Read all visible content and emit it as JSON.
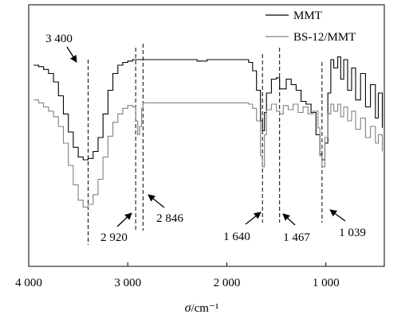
{
  "chart_data": {
    "type": "line",
    "title": "",
    "xlabel_symbol": "σ",
    "xlabel_unit": "/cm⁻¹",
    "ylabel": "",
    "xlim": [
      4000,
      410
    ],
    "x_reversed": true,
    "x_ticks": [
      {
        "value": 4000,
        "label": "4 000"
      },
      {
        "value": 3000,
        "label": "3 000"
      },
      {
        "value": 2000,
        "label": "2 000"
      },
      {
        "value": 1000,
        "label": "1 000"
      }
    ],
    "y_ticks": false,
    "grid": false,
    "legend": {
      "position": "top-right",
      "entries": [
        {
          "name": "MMT",
          "color": "#000000"
        },
        {
          "name": "BS-12/MMT",
          "color": "#808080"
        }
      ]
    },
    "series": [
      {
        "name": "MMT",
        "color": "#000000",
        "x": [
          3950,
          3900,
          3850,
          3800,
          3750,
          3700,
          3650,
          3600,
          3550,
          3500,
          3450,
          3400,
          3350,
          3300,
          3250,
          3200,
          3150,
          3100,
          3050,
          3000,
          2950,
          2920,
          2900,
          2846,
          2800,
          2500,
          2300,
          2200,
          2000,
          1850,
          1780,
          1740,
          1700,
          1660,
          1640,
          1620,
          1600,
          1550,
          1500,
          1467,
          1400,
          1350,
          1300,
          1250,
          1200,
          1150,
          1100,
          1060,
          1039,
          1010,
          980,
          950,
          920,
          880,
          850,
          820,
          780,
          740,
          700,
          650,
          600,
          550,
          500,
          470,
          430
        ],
        "y": [
          0.8,
          0.79,
          0.77,
          0.74,
          0.68,
          0.58,
          0.45,
          0.32,
          0.21,
          0.14,
          0.12,
          0.13,
          0.18,
          0.28,
          0.45,
          0.62,
          0.74,
          0.8,
          0.82,
          0.83,
          0.84,
          0.84,
          0.84,
          0.84,
          0.84,
          0.84,
          0.83,
          0.84,
          0.84,
          0.84,
          0.82,
          0.76,
          0.62,
          0.4,
          0.33,
          0.46,
          0.6,
          0.7,
          0.71,
          0.63,
          0.7,
          0.66,
          0.62,
          0.54,
          0.52,
          0.46,
          0.3,
          0.16,
          0.12,
          0.24,
          0.6,
          0.84,
          0.78,
          0.86,
          0.7,
          0.84,
          0.62,
          0.78,
          0.55,
          0.74,
          0.5,
          0.66,
          0.42,
          0.6,
          0.35
        ]
      },
      {
        "name": "BS-12/MMT",
        "color": "#808080",
        "x": [
          3950,
          3900,
          3850,
          3800,
          3750,
          3700,
          3650,
          3600,
          3550,
          3500,
          3450,
          3400,
          3350,
          3300,
          3250,
          3200,
          3150,
          3100,
          3050,
          3000,
          2950,
          2920,
          2900,
          2880,
          2860,
          2846,
          2800,
          2500,
          2300,
          2000,
          1850,
          1780,
          1740,
          1700,
          1660,
          1640,
          1620,
          1600,
          1550,
          1500,
          1467,
          1430,
          1380,
          1330,
          1280,
          1230,
          1180,
          1130,
          1080,
          1060,
          1039,
          1010,
          980,
          950,
          920,
          880,
          850,
          820,
          780,
          740,
          700,
          650,
          600,
          550,
          500,
          470,
          430
        ],
        "y": [
          0.55,
          0.53,
          0.5,
          0.47,
          0.43,
          0.36,
          0.24,
          0.08,
          -0.06,
          -0.17,
          -0.22,
          -0.2,
          -0.13,
          -0.02,
          0.14,
          0.29,
          0.39,
          0.45,
          0.49,
          0.51,
          0.5,
          0.4,
          0.3,
          0.36,
          0.49,
          0.53,
          0.53,
          0.53,
          0.53,
          0.53,
          0.53,
          0.52,
          0.49,
          0.4,
          0.15,
          0.07,
          0.3,
          0.48,
          0.52,
          0.47,
          0.45,
          0.51,
          0.48,
          0.52,
          0.46,
          0.5,
          0.45,
          0.47,
          0.35,
          0.15,
          0.07,
          0.28,
          0.45,
          0.52,
          0.47,
          0.52,
          0.43,
          0.5,
          0.4,
          0.47,
          0.34,
          0.42,
          0.28,
          0.36,
          0.24,
          0.3,
          0.18
        ]
      }
    ],
    "annotations": [
      {
        "text": "3 400",
        "x": 3400,
        "direction": "down"
      },
      {
        "text": "2 920",
        "x": 2920,
        "direction": "up-right"
      },
      {
        "text": "2 846",
        "x": 2846,
        "direction": "up-left"
      },
      {
        "text": "1 640",
        "x": 1640,
        "direction": "up-right"
      },
      {
        "text": "1 467",
        "x": 1467,
        "direction": "up-left"
      },
      {
        "text": "1 039",
        "x": 1039,
        "direction": "up-left"
      }
    ]
  }
}
